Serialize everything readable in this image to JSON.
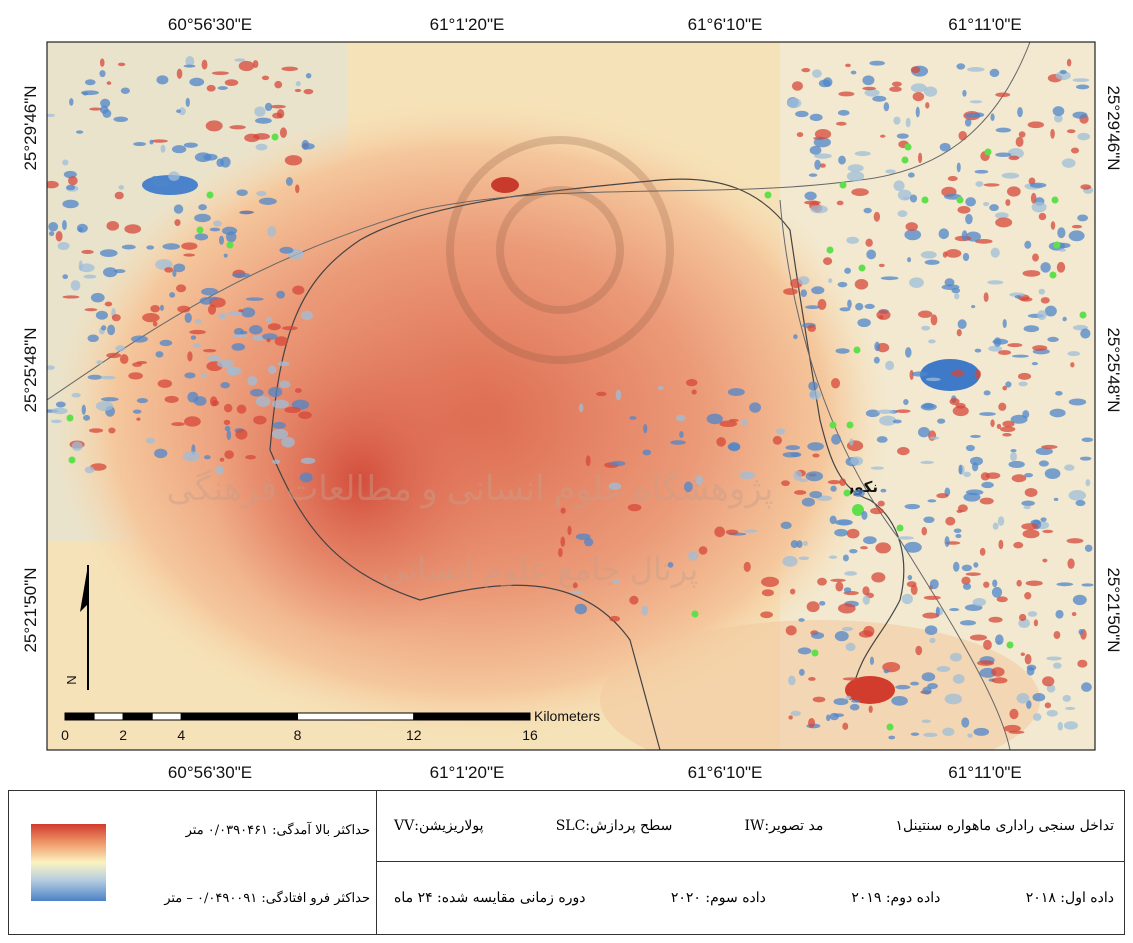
{
  "map": {
    "top_labels": [
      "60°56'30\"E",
      "61°1'20\"E",
      "61°6'10\"E",
      "61°11'0\"E"
    ],
    "bottom_labels": [
      "60°56'30\"E",
      "61°1'20\"E",
      "61°6'10\"E",
      "61°11'0\"E"
    ],
    "left_labels": [
      "25°29'46\"N",
      "25°25'48\"N",
      "25°21'50\"N"
    ],
    "right_labels": [
      "25°29'46\"N",
      "25°25'48\"N",
      "25°21'50\"N"
    ],
    "place_label": "نکور",
    "north": "N",
    "scale": {
      "unit": "Kilometers",
      "ticks": [
        0,
        2,
        4,
        8,
        12,
        16
      ]
    },
    "watermark": [
      "پژوهشگاه علوم انسانی و مطالعات فرهنگی",
      "پرتال جامع علوم انسانی"
    ]
  },
  "legend": {
    "max_uplift": "حداکثر بالا آمدگی: ۰/۰۳۹۰۴۶۱ متر",
    "max_subsidence": "حداکثر فرو افتادگی: ۰/۰۴۹۰۰۹۱ – متر"
  },
  "info": {
    "row1": [
      "تداخل سنجی راداری ماهواره سنتینل۱",
      "مد تصویر:IW",
      "سطح پردازش:SLC",
      "پولاریزیشن:VV"
    ],
    "row2": [
      "داده اول: ۲۰۱۸",
      "داده دوم: ۲۰۱۹",
      "داده سوم: ۲۰۲۰",
      "دوره زمانی مقایسه شده: ۲۴ ماه"
    ]
  }
}
